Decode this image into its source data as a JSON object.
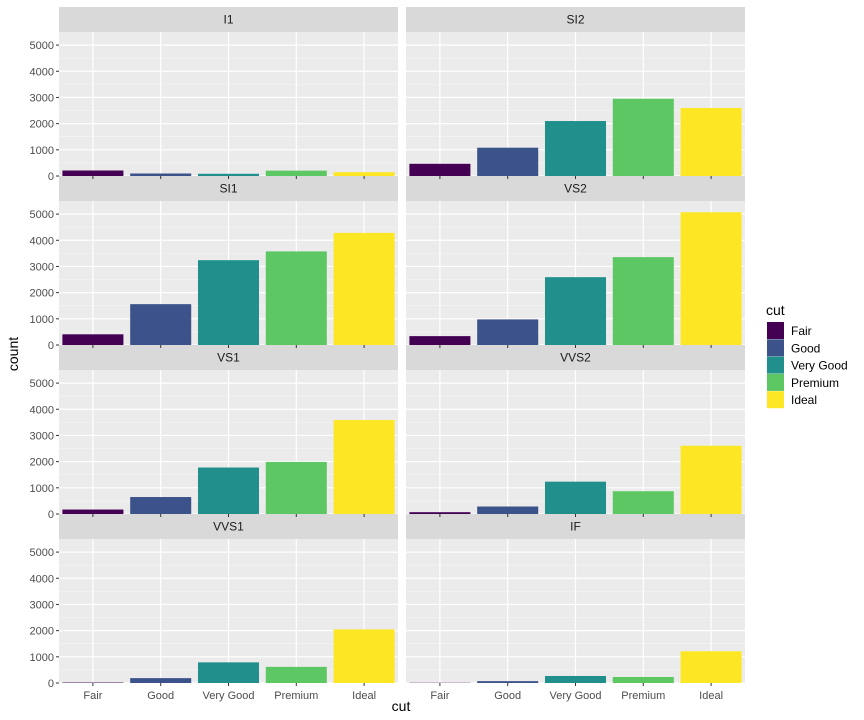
{
  "chart_data": {
    "type": "bar",
    "xlabel": "cut",
    "ylabel": "count",
    "ylim": [
      0,
      5500
    ],
    "yticks": [
      0,
      1000,
      2000,
      3000,
      4000,
      5000
    ],
    "categories": [
      "Fair",
      "Good",
      "Very Good",
      "Premium",
      "Ideal"
    ],
    "colors": [
      "#440154",
      "#3B528B",
      "#21908C",
      "#5DC863",
      "#FDE725"
    ],
    "grid": true,
    "legend": {
      "title": "cut",
      "position": "right",
      "entries": [
        "Fair",
        "Good",
        "Very Good",
        "Premium",
        "Ideal"
      ]
    },
    "facets": [
      {
        "label": "I1",
        "values": [
          210,
          96,
          84,
          205,
          146
        ]
      },
      {
        "label": "SI2",
        "values": [
          466,
          1081,
          2100,
          2949,
          2598
        ]
      },
      {
        "label": "SI1",
        "values": [
          408,
          1560,
          3240,
          3575,
          4282
        ]
      },
      {
        "label": "VS2",
        "values": [
          339,
          978,
          2591,
          3357,
          5071
        ]
      },
      {
        "label": "VS1",
        "values": [
          170,
          648,
          1775,
          1989,
          3589
        ]
      },
      {
        "label": "VVS2",
        "values": [
          69,
          286,
          1235,
          870,
          2606
        ]
      },
      {
        "label": "VVS1",
        "values": [
          17,
          186,
          789,
          616,
          2047
        ]
      },
      {
        "label": "IF",
        "values": [
          9,
          71,
          268,
          230,
          1212
        ]
      }
    ]
  }
}
